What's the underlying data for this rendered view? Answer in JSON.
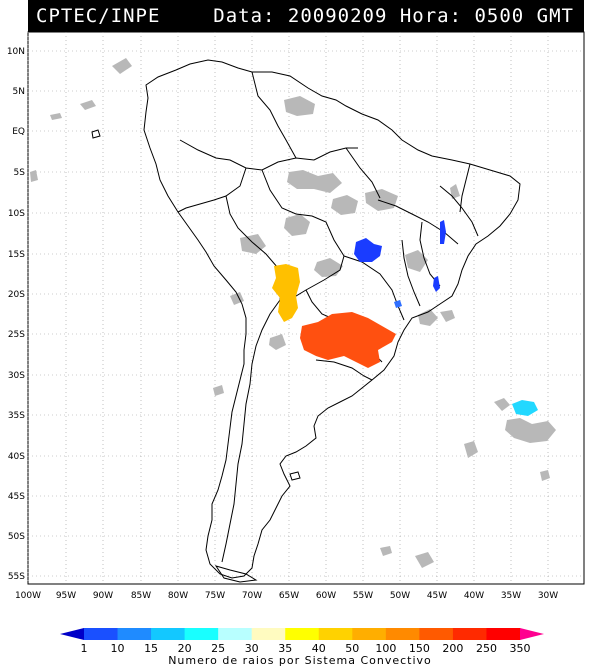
{
  "header": {
    "source": "CPTEC/INPE",
    "date_label": "Data: 20090209",
    "hour_label": "Hora: 0500 GMT",
    "combined": "Data: 20090209 Hora: 0500 GMT"
  },
  "map": {
    "lat_labels": [
      "10N",
      "5N",
      "EQ",
      "5S",
      "10S",
      "15S",
      "20S",
      "25S",
      "30S",
      "35S",
      "40S",
      "45S",
      "50S",
      "55S"
    ],
    "lon_labels": [
      "100W",
      "95W",
      "90W",
      "85W",
      "80W",
      "75W",
      "70W",
      "65W",
      "60W",
      "55W",
      "50W",
      "45W",
      "40W",
      "35W",
      "30W"
    ],
    "colors": {
      "land_outline": "#000000",
      "cloud": "#b8b8b8",
      "grid": "#9a9a9a"
    }
  },
  "clusters": [
    {
      "name": "central-brazil",
      "color": "#1a3cff"
    },
    {
      "name": "east-brazil-a",
      "color": "#1a3cff"
    },
    {
      "name": "east-brazil-b",
      "color": "#1a3cff"
    },
    {
      "name": "sp-coast",
      "color": "#2f6fff"
    },
    {
      "name": "bolivia",
      "color": "#ffc000"
    },
    {
      "name": "paraguay-south-brazil",
      "color": "#ff5010"
    },
    {
      "name": "atlantic",
      "color": "#22d8ff"
    }
  ],
  "colorbar": {
    "labels": [
      "1",
      "10",
      "15",
      "20",
      "25",
      "30",
      "35",
      "40",
      "50",
      "100",
      "150",
      "200",
      "250",
      "350"
    ],
    "colors": [
      "#0000c8",
      "#1a50ff",
      "#1f8bff",
      "#13c8ff",
      "#19ffff",
      "#b8ffff",
      "#fffbc0",
      "#ffff00",
      "#ffd200",
      "#ffae00",
      "#ff8a00",
      "#ff5a00",
      "#ff2a00",
      "#ff0000",
      "#ff0090"
    ],
    "title": "Numero de raios por Sistema Convectivo"
  }
}
